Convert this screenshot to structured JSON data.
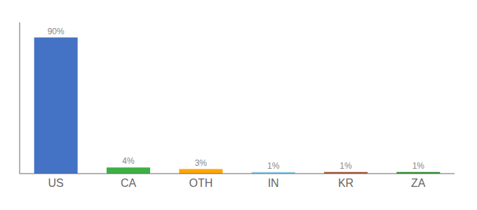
{
  "chart_data": {
    "type": "bar",
    "categories": [
      "US",
      "CA",
      "OTH",
      "IN",
      "KR",
      "ZA"
    ],
    "values": [
      90,
      4,
      3,
      1,
      1,
      1
    ],
    "value_labels": [
      "90%",
      "4%",
      "3%",
      "1%",
      "1%",
      "1%"
    ],
    "data_labels": true,
    "colors": [
      "#4472C4",
      "#3CB043",
      "#FFA500",
      "#87CEEB",
      "#A0522D",
      "#2E8B2E"
    ],
    "ylim": [
      0,
      100
    ],
    "grid": false,
    "tick_labels": "x"
  }
}
